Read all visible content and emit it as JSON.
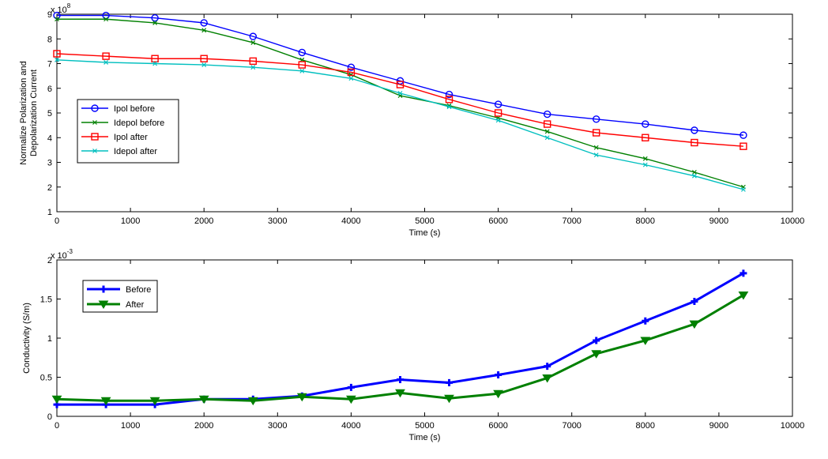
{
  "chart_data": [
    {
      "type": "line",
      "xlabel": "Time (s)",
      "ylabel_lines": [
        "Normalize Polarization and",
        "Depolarization Current"
      ],
      "y_exponent_base": "x 10",
      "y_exponent_power": "8",
      "xlim": [
        0,
        10000
      ],
      "ylim": [
        1,
        9
      ],
      "xticks": [
        0,
        1000,
        2000,
        3000,
        4000,
        5000,
        6000,
        7000,
        8000,
        9000,
        10000
      ],
      "yticks": [
        1,
        2,
        3,
        4,
        5,
        6,
        7,
        8,
        9
      ],
      "grid": false,
      "legend_position": "left-middle",
      "x": [
        0,
        667,
        1333,
        2000,
        2667,
        3333,
        4000,
        4667,
        5333,
        6000,
        6667,
        7333,
        8000,
        8667,
        9333
      ],
      "series": [
        {
          "name": "Ipol before",
          "color": "#0000ff",
          "marker": "circle",
          "values": [
            8.95,
            8.95,
            8.85,
            8.65,
            8.1,
            7.45,
            6.85,
            6.3,
            5.75,
            5.35,
            4.95,
            4.75,
            4.55,
            4.3,
            4.1
          ]
        },
        {
          "name": "Idepol before",
          "color": "#008000",
          "marker": "x",
          "values": [
            8.8,
            8.8,
            8.65,
            8.35,
            7.85,
            7.15,
            6.55,
            5.7,
            5.3,
            4.8,
            4.25,
            3.6,
            3.15,
            2.6,
            2.0
          ]
        },
        {
          "name": "Ipol after",
          "color": "#ff0000",
          "marker": "square",
          "values": [
            7.4,
            7.3,
            7.2,
            7.2,
            7.1,
            6.95,
            6.65,
            6.15,
            5.55,
            5.0,
            4.55,
            4.2,
            4.0,
            3.8,
            3.65
          ]
        },
        {
          "name": "Idepol after",
          "color": "#00bfbf",
          "marker": "x",
          "values": [
            7.15,
            7.05,
            7.0,
            6.95,
            6.85,
            6.7,
            6.4,
            5.8,
            5.25,
            4.7,
            4.0,
            3.3,
            2.9,
            2.45,
            1.9
          ]
        }
      ]
    },
    {
      "type": "line",
      "xlabel": "Time (s)",
      "ylabel": "Conductivity (S/m)",
      "y_exponent_base": "x 10",
      "y_exponent_power": "-3",
      "xlim": [
        0,
        10000
      ],
      "ylim": [
        0,
        2
      ],
      "xticks": [
        0,
        1000,
        2000,
        3000,
        4000,
        5000,
        6000,
        7000,
        8000,
        9000,
        10000
      ],
      "yticks": [
        0,
        0.5,
        1,
        1.5,
        2
      ],
      "grid": false,
      "legend_position": "top-left",
      "x": [
        0,
        667,
        1333,
        2000,
        2667,
        3333,
        4000,
        4667,
        5333,
        6000,
        6667,
        7333,
        8000,
        8667,
        9333
      ],
      "series": [
        {
          "name": "Before",
          "color": "#0000ff",
          "marker": "cross",
          "values": [
            0.15,
            0.15,
            0.15,
            0.22,
            0.22,
            0.26,
            0.37,
            0.47,
            0.43,
            0.53,
            0.64,
            0.97,
            1.22,
            1.47,
            1.83
          ]
        },
        {
          "name": "After",
          "color": "#008000",
          "marker": "triangle-down",
          "values": [
            0.22,
            0.2,
            0.2,
            0.22,
            0.2,
            0.25,
            0.22,
            0.3,
            0.23,
            0.29,
            0.49,
            0.8,
            0.97,
            1.18,
            1.55
          ]
        }
      ]
    }
  ]
}
